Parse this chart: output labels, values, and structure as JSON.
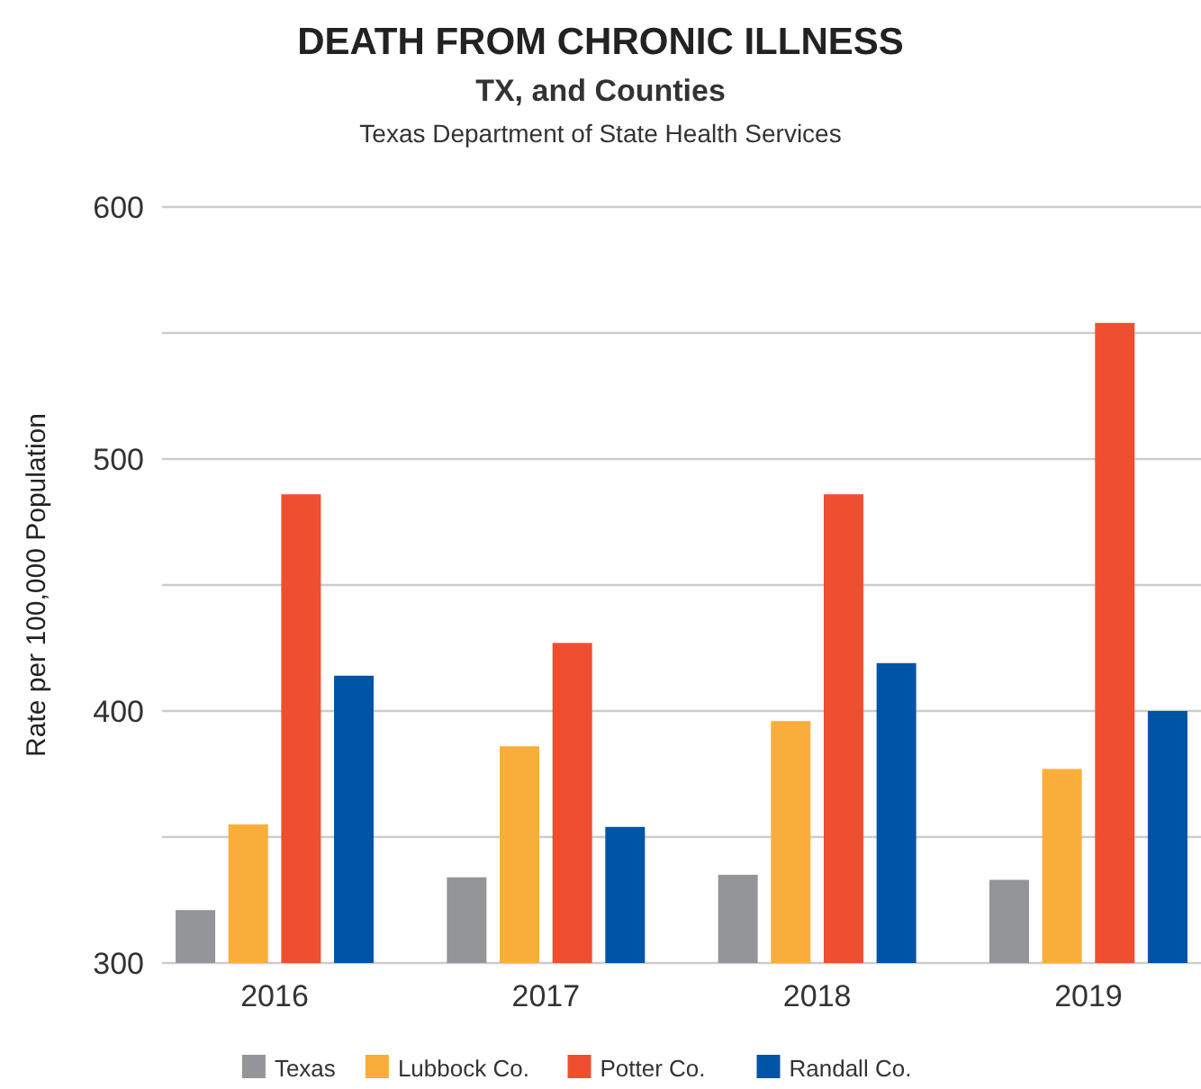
{
  "chart_data": {
    "type": "bar",
    "title": "DEATH FROM CHRONIC ILLNESS",
    "subtitle": "TX, and Counties",
    "annotations": [
      "Texas Department of State Health Services"
    ],
    "ylabel": "Rate per 100,000 Population",
    "categories": [
      "2016",
      "2017",
      "2018",
      "2019"
    ],
    "series": [
      {
        "name": "Texas",
        "color": "#939598",
        "values": [
          321,
          334,
          335,
          333
        ]
      },
      {
        "name": "Lubbock Co.",
        "color": "#f9ae3b",
        "values": [
          355,
          386,
          396,
          377
        ]
      },
      {
        "name": "Potter Co.",
        "color": "#ef4e30",
        "values": [
          486,
          427,
          486,
          554
        ]
      },
      {
        "name": "Randall Co.",
        "color": "#0054a6",
        "values": [
          414,
          354,
          419,
          400
        ]
      }
    ],
    "ylim": [
      300,
      600
    ],
    "yticks": [
      300,
      {
        "value": 350,
        "label": null
      },
      400,
      {
        "value": 450,
        "label": null
      },
      500,
      {
        "value": 550,
        "label": null
      },
      600
    ],
    "grid": "y",
    "legend": "bottom"
  }
}
